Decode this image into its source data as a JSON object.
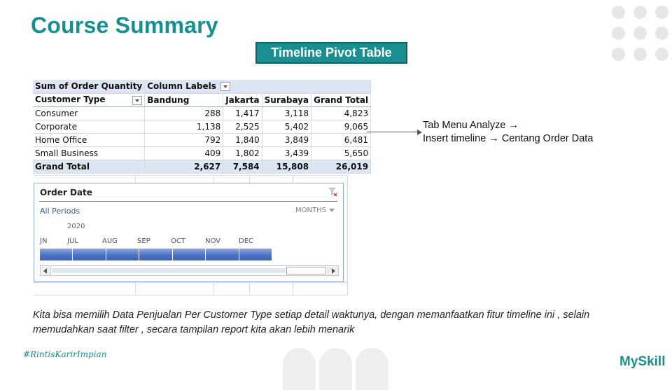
{
  "title": "Course Summary",
  "badge": "Timeline Pivot Table",
  "pivot": {
    "value_field": "Sum of Order Quantity",
    "column_labels": "Column Labels",
    "row_field": "Customer Type",
    "columns": [
      "Bandung",
      "Jakarta",
      "Surabaya",
      "Grand Total"
    ],
    "rows": [
      {
        "label": "Consumer",
        "values": [
          "288",
          "1,417",
          "3,118",
          "4,823"
        ]
      },
      {
        "label": "Corporate",
        "values": [
          "1,138",
          "2,525",
          "5,402",
          "9,065"
        ]
      },
      {
        "label": "Home Office",
        "values": [
          "792",
          "1,840",
          "3,849",
          "6,481"
        ]
      },
      {
        "label": "Small Business",
        "values": [
          "409",
          "1,802",
          "3,439",
          "5,650"
        ]
      }
    ],
    "total": {
      "label": "Grand Total",
      "values": [
        "2,627",
        "7,584",
        "15,808",
        "26,019"
      ]
    }
  },
  "timeline": {
    "title": "Order Date",
    "periods": "All Periods",
    "level": "MONTHS",
    "year": "2020",
    "months": [
      "JN",
      "JUL",
      "AUG",
      "SEP",
      "OCT",
      "NOV",
      "DEC"
    ],
    "clear_icon": "filter-clear-icon"
  },
  "note": {
    "line1": "Tab Menu Analyze →",
    "line2": "Insert timeline → Centang Order Data"
  },
  "caption": "Kita bisa memilih Data Penjualan Per Customer Type setiap detail waktunya, dengan memanfaatkan fitur timeline ini , selain memudahkan saat filter , secara tampilan report kita akan lebih menarik",
  "hashtag": "#RintisKarirImpian",
  "brand": "MySkill",
  "colors": {
    "accent": "#1a8f91",
    "timeline_bar": "#4d73c4",
    "pivot_header": "#dce6f2"
  }
}
